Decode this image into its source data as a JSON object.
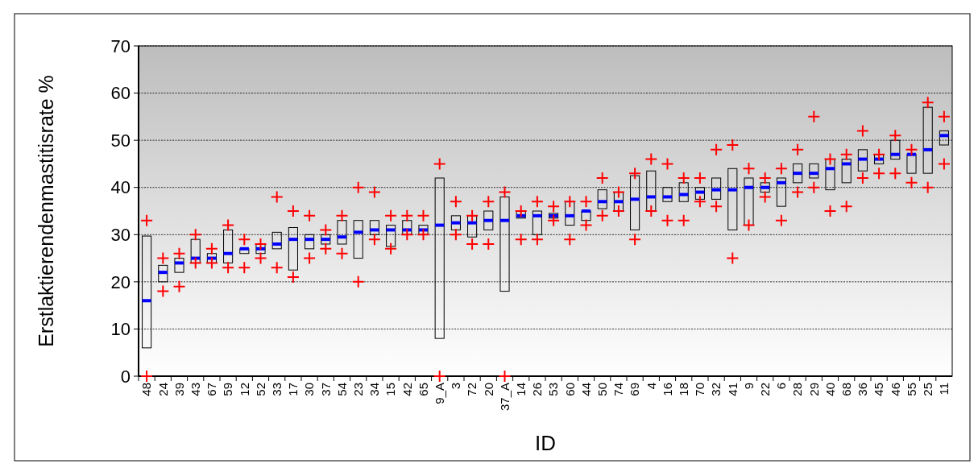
{
  "chart_data": {
    "type": "box",
    "xlabel": "ID",
    "ylabel": "Erstlaktierendenmastitisrate %",
    "ylim": [
      0,
      70
    ],
    "yticks": [
      0,
      10,
      20,
      30,
      40,
      50,
      60,
      70
    ],
    "grid": "y",
    "categories": [
      "48",
      "24",
      "39",
      "43",
      "67",
      "59",
      "12",
      "52",
      "33",
      "17",
      "30",
      "37",
      "54",
      "23",
      "34",
      "15",
      "42",
      "65",
      "9_A",
      "3",
      "72",
      "20",
      "37_A",
      "14",
      "26",
      "53",
      "60",
      "44",
      "50",
      "74",
      "69",
      "4",
      "16",
      "18",
      "70",
      "32",
      "41",
      "9",
      "22",
      "6",
      "28",
      "29",
      "40",
      "68",
      "36",
      "45",
      "46",
      "55",
      "25",
      "11"
    ],
    "boxes": [
      {
        "low": 6,
        "q1": 6,
        "median": 16,
        "q3": 29.7,
        "high": 29.7
      },
      {
        "low": 20,
        "q1": 20,
        "median": 22,
        "q3": 23.5,
        "high": 23.5
      },
      {
        "low": 22,
        "q1": 22,
        "median": 24,
        "q3": 25,
        "high": 25
      },
      {
        "low": 24,
        "q1": 24,
        "median": 25,
        "q3": 29,
        "high": 29
      },
      {
        "low": 24,
        "q1": 24,
        "median": 25,
        "q3": 26,
        "high": 26
      },
      {
        "low": 24,
        "q1": 24,
        "median": 26,
        "q3": 31,
        "high": 31
      },
      {
        "low": 26,
        "q1": 26,
        "median": 27,
        "q3": 27,
        "high": 27
      },
      {
        "low": 26,
        "q1": 26,
        "median": 27,
        "q3": 28,
        "high": 28
      },
      {
        "low": 27,
        "q1": 27,
        "median": 28,
        "q3": 30.5,
        "high": 30.5
      },
      {
        "low": 22.5,
        "q1": 22.5,
        "median": 29,
        "q3": 31.5,
        "high": 31.5
      },
      {
        "low": 27,
        "q1": 27,
        "median": 29,
        "q3": 30,
        "high": 30
      },
      {
        "low": 28,
        "q1": 28,
        "median": 29,
        "q3": 30,
        "high": 30
      },
      {
        "low": 28,
        "q1": 28,
        "median": 29.5,
        "q3": 33,
        "high": 33
      },
      {
        "low": 25,
        "q1": 25,
        "median": 30.5,
        "q3": 33,
        "high": 33
      },
      {
        "low": 30,
        "q1": 30,
        "median": 31,
        "q3": 33,
        "high": 33
      },
      {
        "low": 27.5,
        "q1": 27.5,
        "median": 31,
        "q3": 32,
        "high": 32
      },
      {
        "low": 30,
        "q1": 30,
        "median": 31,
        "q3": 33,
        "high": 33
      },
      {
        "low": 30,
        "q1": 30,
        "median": 31,
        "q3": 32,
        "high": 32
      },
      {
        "low": 8,
        "q1": 8,
        "median": 32,
        "q3": 42,
        "high": 42
      },
      {
        "low": 31,
        "q1": 31,
        "median": 32.5,
        "q3": 34,
        "high": 34
      },
      {
        "low": 29.5,
        "q1": 29.5,
        "median": 32.5,
        "q3": 34,
        "high": 34
      },
      {
        "low": 31,
        "q1": 31,
        "median": 33,
        "q3": 35,
        "high": 35
      },
      {
        "low": 18,
        "q1": 18,
        "median": 33,
        "q3": 38,
        "high": 38
      },
      {
        "low": 33.5,
        "q1": 33.5,
        "median": 34,
        "q3": 35,
        "high": 35
      },
      {
        "low": 30,
        "q1": 30,
        "median": 34,
        "q3": 35,
        "high": 35
      },
      {
        "low": 33.5,
        "q1": 33.5,
        "median": 34,
        "q3": 34.5,
        "high": 34.5
      },
      {
        "low": 32,
        "q1": 32,
        "median": 34,
        "q3": 37,
        "high": 37
      },
      {
        "low": 33,
        "q1": 33,
        "median": 35,
        "q3": 35,
        "high": 35
      },
      {
        "low": 35.5,
        "q1": 35.5,
        "median": 37,
        "q3": 39.5,
        "high": 39.5
      },
      {
        "low": 35,
        "q1": 35,
        "median": 37,
        "q3": 39,
        "high": 39
      },
      {
        "low": 31,
        "q1": 31,
        "median": 37.5,
        "q3": 42.5,
        "high": 42.5
      },
      {
        "low": 35,
        "q1": 35,
        "median": 38,
        "q3": 43.5,
        "high": 43.5
      },
      {
        "low": 37,
        "q1": 37,
        "median": 38,
        "q3": 40,
        "high": 40
      },
      {
        "low": 37,
        "q1": 37,
        "median": 38.5,
        "q3": 41,
        "high": 41
      },
      {
        "low": 37.5,
        "q1": 37.5,
        "median": 39,
        "q3": 40,
        "high": 40
      },
      {
        "low": 37.5,
        "q1": 37.5,
        "median": 39.5,
        "q3": 42,
        "high": 42
      },
      {
        "low": 31,
        "q1": 31,
        "median": 39.5,
        "q3": 44,
        "high": 44
      },
      {
        "low": 32,
        "q1": 32,
        "median": 40,
        "q3": 42,
        "high": 42
      },
      {
        "low": 39,
        "q1": 39,
        "median": 40,
        "q3": 41,
        "high": 41
      },
      {
        "low": 36,
        "q1": 36,
        "median": 41,
        "q3": 42,
        "high": 42
      },
      {
        "low": 41,
        "q1": 41,
        "median": 43,
        "q3": 45,
        "high": 45
      },
      {
        "low": 42,
        "q1": 42,
        "median": 43,
        "q3": 45,
        "high": 45
      },
      {
        "low": 39.5,
        "q1": 39.5,
        "median": 44,
        "q3": 46,
        "high": 46
      },
      {
        "low": 41,
        "q1": 41,
        "median": 45,
        "q3": 46,
        "high": 46
      },
      {
        "low": 43.5,
        "q1": 43.5,
        "median": 46,
        "q3": 48,
        "high": 48
      },
      {
        "low": 45,
        "q1": 45,
        "median": 46,
        "q3": 47,
        "high": 47
      },
      {
        "low": 46,
        "q1": 46,
        "median": 47,
        "q3": 50,
        "high": 50
      },
      {
        "low": 43,
        "q1": 43,
        "median": 47,
        "q3": 47,
        "high": 47
      },
      {
        "low": 43,
        "q1": 43,
        "median": 48,
        "q3": 57,
        "high": 57
      },
      {
        "low": 49,
        "q1": 49,
        "median": 51,
        "q3": 52,
        "high": 52
      }
    ],
    "series": [
      {
        "type": "scatter",
        "color": "#ff0000",
        "x": [
          "48",
          "24",
          "39",
          "43",
          "67",
          "59",
          "12",
          "52",
          "33",
          "17",
          "30",
          "37",
          "54",
          "23",
          "34",
          "15",
          "42",
          "65",
          "9_A",
          "3",
          "72",
          "20",
          "37_A",
          "14",
          "26",
          "53",
          "60",
          "44",
          "50",
          "74",
          "69",
          "4",
          "16",
          "18",
          "70",
          "32",
          "41",
          "9",
          "22",
          "6",
          "28",
          "29",
          "40",
          "68",
          "36",
          "45",
          "46",
          "55",
          "25",
          "11"
        ],
        "values": [
          0,
          18,
          19,
          24,
          24,
          23,
          23,
          25,
          23,
          21,
          25,
          27,
          26,
          20,
          29,
          27,
          30,
          30,
          0,
          30,
          28,
          28,
          0,
          29,
          29,
          33,
          29,
          32,
          34,
          35,
          29,
          35,
          33,
          33,
          37,
          36,
          25,
          32,
          38,
          33,
          39,
          40,
          35,
          36,
          42,
          43,
          43,
          41,
          40,
          45
        ]
      },
      {
        "type": "scatter",
        "color": "#ff0000",
        "x": [
          "48",
          "24",
          "39",
          "43",
          "67",
          "59",
          "12",
          "52",
          "33",
          "17",
          "30",
          "37",
          "54",
          "23",
          "34",
          "15",
          "42",
          "65",
          "9_A",
          "3",
          "72",
          "20",
          "37_A",
          "14",
          "26",
          "53",
          "60",
          "44",
          "50",
          "74",
          "69",
          "4",
          "16",
          "18",
          "70",
          "32",
          "41",
          "9",
          "22",
          "6",
          "28",
          "29",
          "40",
          "68",
          "36",
          "45",
          "46",
          "55",
          "25",
          "11"
        ],
        "values": [
          33,
          25,
          26,
          30,
          27,
          32,
          29,
          28,
          38,
          35,
          34,
          31,
          34,
          40,
          39,
          34,
          34,
          34,
          45,
          37,
          34,
          37,
          39,
          35,
          37,
          36,
          37,
          37,
          42,
          39,
          43,
          46,
          45,
          42,
          42,
          48,
          49,
          44,
          42,
          44,
          48,
          55,
          46,
          47,
          52,
          47,
          51,
          48,
          58,
          55
        ]
      }
    ],
    "marker": "cross"
  }
}
